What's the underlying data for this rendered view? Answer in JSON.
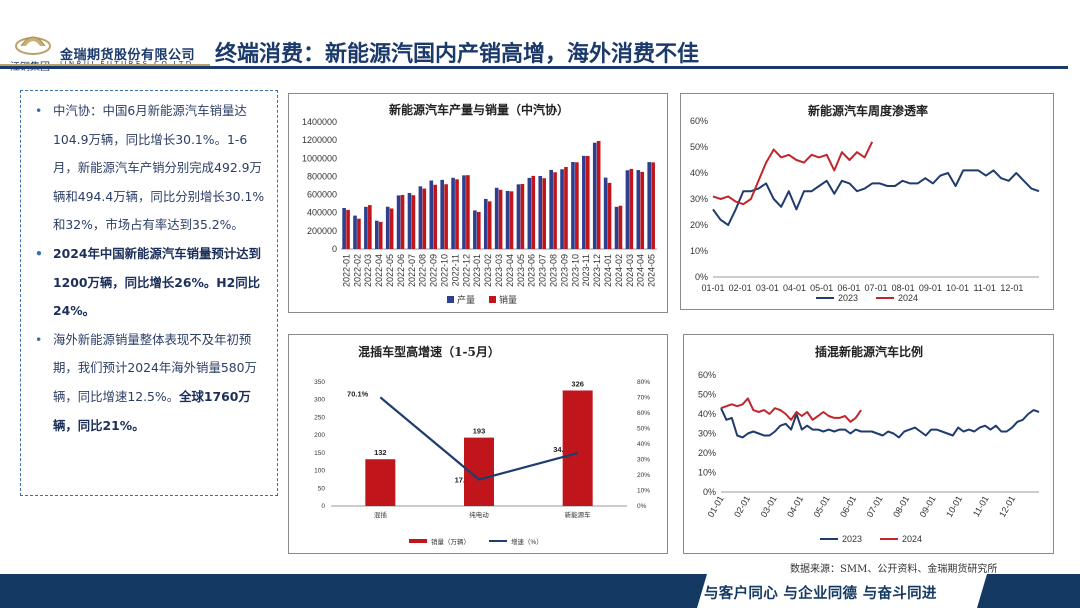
{
  "header": {
    "company_cn": "金瑞期货股份有限公司",
    "company_en": "JINRUI FUTURES CO.LTD",
    "group_name": "江铜集团",
    "title": "终端消费：新能源汽国内产销高增，海外消费不佳",
    "brand_color": "#1b3a6b"
  },
  "bullets": [
    {
      "text": "中汽协：中国6月新能源汽车销量达104.9万辆，同比增长30.1%。1-6月，新能源汽车产销分别完成492.9万辆和494.4万辆，同比分别增长30.1%和32%，市场占有率达到35.2%。"
    },
    {
      "text": "2024年中国新能源汽车销量预计达到1200万辆，同比增长26%。H2同比24%。"
    },
    {
      "pre": "海外新能源销量整体表现不及年初预期，我们预计2024年海外销量580万辆，同比增速12.5%。",
      "bold": "全球1760万辆，同比21%。"
    }
  ],
  "source": "数据来源：SMM、公开资料、金瑞期货研究所",
  "footer": {
    "slogan": "与客户同心 与企业同德 与奋斗同进"
  },
  "chart_data": [
    {
      "type": "bar",
      "title": "新能源汽车产量与销量（中汽协）",
      "categories": [
        "2022-01",
        "2022-02",
        "2022-03",
        "2022-04",
        "2022-05",
        "2022-06",
        "2022-07",
        "2022-08",
        "2022-09",
        "2022-10",
        "2022-11",
        "2022-12",
        "2023-01",
        "2023-02",
        "2023-03",
        "2023-04",
        "2023-05",
        "2023-06",
        "2023-07",
        "2023-08",
        "2023-09",
        "2023-10",
        "2023-11",
        "2023-12",
        "2024-01",
        "2024-02",
        "2024-03",
        "2024-04",
        "2024-05"
      ],
      "ylim": [
        0,
        1400000
      ],
      "yticks": [
        "0",
        "200000",
        "400000",
        "600000",
        "800000",
        "1000000",
        "1200000",
        "1400000"
      ],
      "series": [
        {
          "name": "产量",
          "color": "#2e3f8f",
          "values": [
            452000,
            368000,
            465000,
            312000,
            466000,
            591000,
            617000,
            691000,
            755000,
            762000,
            785000,
            812000,
            425000,
            552000,
            675000,
            640000,
            713000,
            784000,
            805000,
            872000,
            879000,
            959000,
            1027000,
            1172000,
            787000,
            465000,
            868000,
            870000,
            958000
          ]
        },
        {
          "name": "销量",
          "color": "#c0161b",
          "values": [
            431000,
            334000,
            484000,
            299000,
            447000,
            596000,
            593000,
            666000,
            708000,
            714000,
            768000,
            814000,
            408000,
            525000,
            653000,
            636000,
            717000,
            806000,
            780000,
            846000,
            904000,
            956000,
            1026000,
            1191000,
            729000,
            477000,
            883000,
            850000,
            955000
          ]
        }
      ]
    },
    {
      "type": "line",
      "title": "新能源汽车周度渗透率",
      "xticks": [
        "01-01",
        "02-01",
        "03-01",
        "04-01",
        "05-01",
        "06-01",
        "07-01",
        "08-01",
        "09-01",
        "10-01",
        "11-01",
        "12-01"
      ],
      "yticks": [
        "0%",
        "10%",
        "20%",
        "30%",
        "40%",
        "50%",
        "60%"
      ],
      "ylim": [
        0,
        60
      ],
      "series": [
        {
          "name": "2023",
          "color": "#1f3c6e",
          "values": [
            26,
            22,
            20,
            26,
            33,
            33,
            34,
            36,
            30,
            27,
            33,
            26,
            33,
            33,
            35,
            37,
            32,
            37,
            36,
            33,
            34,
            36,
            36,
            35,
            35,
            37,
            36,
            36,
            38,
            36,
            39,
            40,
            35,
            41,
            41,
            41,
            39,
            41,
            38,
            37,
            40,
            37,
            34,
            33
          ]
        },
        {
          "name": "2024",
          "color": "#c0262c",
          "values": [
            31,
            30,
            31,
            29,
            28,
            30,
            37,
            44,
            49,
            46,
            47,
            45,
            44,
            47,
            46,
            47,
            41,
            48,
            45,
            48,
            46,
            52
          ]
        }
      ]
    },
    {
      "type": "bar",
      "title": "混插车型高增速（1-5月）",
      "categories": [
        "混插",
        "纯电动",
        "新能源车"
      ],
      "ylim": [
        0,
        350
      ],
      "yticks": [
        "0",
        "50",
        "100",
        "150",
        "200",
        "250",
        "300",
        "350"
      ],
      "y2ticks": [
        "0%",
        "10%",
        "20%",
        "30%",
        "40%",
        "50%",
        "60%",
        "70%",
        "80%"
      ],
      "series": [
        {
          "name": "销量（万辆）",
          "color": "#c0161b",
          "values": [
            132,
            193,
            326
          ]
        },
        {
          "name": "增速（%）",
          "color": "#1f3c6e",
          "type": "line",
          "values": [
            70.1,
            17.1,
            34.1
          ]
        }
      ],
      "bar_labels": [
        "132",
        "193",
        "326"
      ],
      "line_labels": [
        "70.1%",
        "17.",
        "34."
      ]
    },
    {
      "type": "line",
      "title": "插混新能源汽车比例",
      "xticks": [
        "01-01",
        "02-01",
        "03-01",
        "04-01",
        "05-01",
        "06-01",
        "07-01",
        "08-01",
        "09-01",
        "10-01",
        "11-01",
        "12-01"
      ],
      "yticks": [
        "0%",
        "10%",
        "20%",
        "30%",
        "40%",
        "50%",
        "60%"
      ],
      "ylim": [
        0,
        60
      ],
      "series": [
        {
          "name": "2023",
          "color": "#1f3c6e",
          "values": [
            43,
            37,
            38,
            29,
            28,
            30,
            31,
            30,
            29,
            29,
            31,
            34,
            35,
            32,
            40,
            32,
            34,
            32,
            32,
            31,
            32,
            31,
            32,
            32,
            30,
            32,
            31,
            31,
            31,
            30,
            29,
            31,
            30,
            28,
            31,
            32,
            33,
            31,
            29,
            32,
            32,
            31,
            30,
            29,
            33,
            31,
            32,
            31,
            33,
            34,
            32,
            34,
            31,
            31,
            33,
            36,
            37,
            40,
            42,
            41
          ]
        },
        {
          "name": "2024",
          "color": "#c0262c",
          "values": [
            43,
            44,
            45,
            44,
            45,
            48,
            42,
            41,
            42,
            40,
            43,
            42,
            40,
            37,
            41,
            39,
            41,
            37,
            39,
            41,
            39,
            38,
            38,
            39,
            36,
            38,
            42
          ]
        }
      ]
    }
  ]
}
